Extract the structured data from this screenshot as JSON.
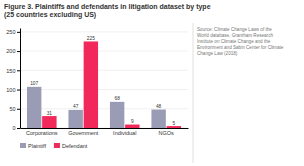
{
  "chart_data": {
    "type": "bar",
    "title": "Figure 3. Plaintiffs and defendants in litigation dataset by type",
    "subtitle": "(25 countries excluding US)",
    "annotations": [
      "Source: Climate Change Laws of the\nWorld database, Grantham Research\nInstitute on Climate Change and the\nEnvironment and Sabin Center for Climate\nChange Law (2018)"
    ],
    "categories": [
      "Corporations",
      "Government",
      "Individual",
      "NGOs"
    ],
    "series": [
      {
        "name": "Plaintiff",
        "color": "#9a9cb5",
        "values": [
          107,
          47,
          68,
          48
        ]
      },
      {
        "name": "Defendant",
        "color": "#f0295a",
        "values": [
          31,
          225,
          9,
          5
        ]
      }
    ],
    "ylim": [
      0,
      260
    ],
    "yticks": [
      0,
      50,
      100,
      150,
      200,
      250
    ],
    "grid": true,
    "legend": "bottom",
    "data_labels": true
  }
}
